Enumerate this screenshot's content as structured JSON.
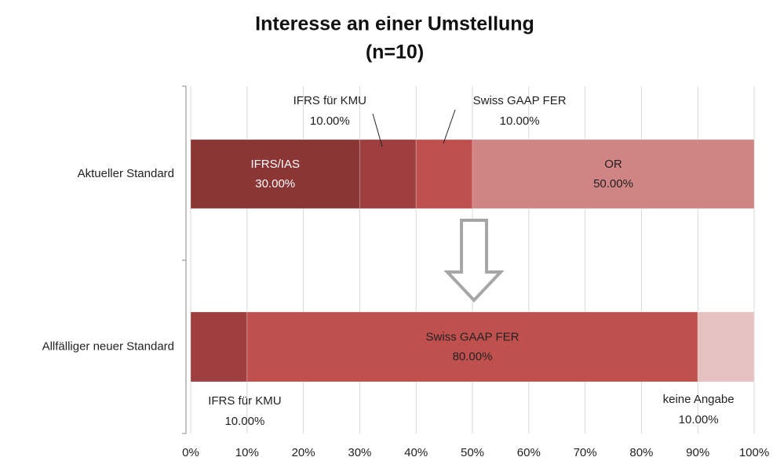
{
  "chart_data": {
    "type": "stacked-barh",
    "title": "Interesse an einer Umstellung",
    "subtitle": "(n=10)",
    "categories": [
      "Aktueller Standard",
      "Allfälliger neuer Standard"
    ],
    "series": [
      {
        "name": "IFRS/IAS",
        "color": "#8b3535",
        "values": [
          30,
          0
        ],
        "value_labels": [
          "30.00%",
          null
        ]
      },
      {
        "name": "IFRS für KMU",
        "color": "#9e3e3e",
        "values": [
          10,
          10
        ],
        "value_labels": [
          "10.00%",
          "10.00%"
        ]
      },
      {
        "name": "Swiss GAAP FER",
        "color": "#c0504d",
        "values": [
          10,
          80
        ],
        "value_labels": [
          "10.00%",
          "80.00%"
        ]
      },
      {
        "name": "OR",
        "color": "#d08584",
        "values": [
          50,
          0
        ],
        "value_labels": [
          "50.00%",
          null
        ]
      },
      {
        "name": "keine Angabe",
        "color": "#e6c1c2",
        "values": [
          0,
          10
        ],
        "value_labels": [
          null,
          "10.00%"
        ]
      }
    ],
    "xlim": [
      0,
      100
    ],
    "xticks": [
      {
        "value": 0,
        "label": "0%"
      },
      {
        "value": 10,
        "label": "10%"
      },
      {
        "value": 20,
        "label": "20%"
      },
      {
        "value": 30,
        "label": "30%"
      },
      {
        "value": 40,
        "label": "40%"
      },
      {
        "value": 50,
        "label": "50%"
      },
      {
        "value": 60,
        "label": "60%"
      },
      {
        "value": 70,
        "label": "70%"
      },
      {
        "value": 80,
        "label": "80%"
      },
      {
        "value": 90,
        "label": "90%"
      },
      {
        "value": 100,
        "label": "100%"
      }
    ],
    "grid": true
  }
}
